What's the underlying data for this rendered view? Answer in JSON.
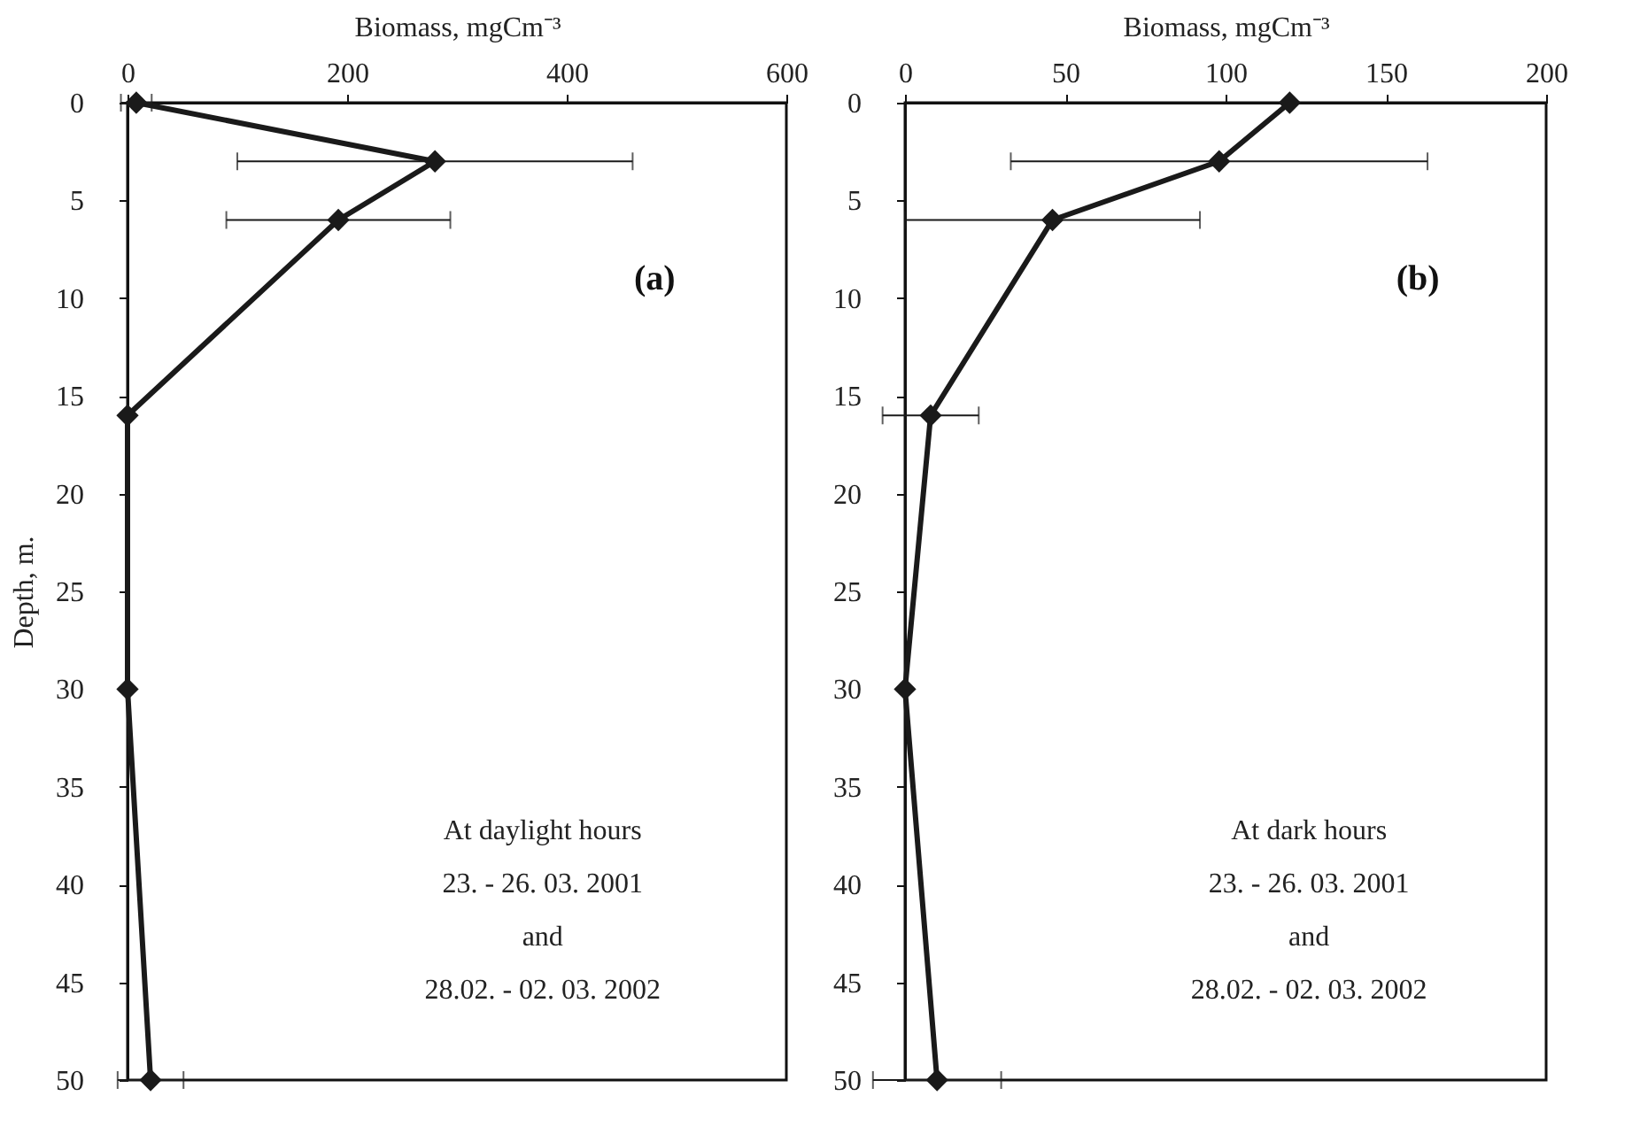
{
  "chart_data": [
    {
      "type": "line",
      "orientation": "horizontal",
      "xlabel": "Biomass, mgCm⁻³",
      "ylabel": "Depth, m.",
      "x": [
        0,
        3,
        6,
        16,
        30,
        50
      ],
      "series": [
        {
          "color": "#1a1a1a",
          "values": [
            8,
            280,
            192,
            0,
            0,
            21
          ],
          "errors": [
            14,
            180,
            102,
            null,
            null,
            30
          ]
        }
      ],
      "xlim": [
        0,
        600
      ],
      "xticks": [
        0,
        200,
        400,
        600
      ],
      "ylim": [
        50,
        0
      ],
      "yticks": [
        0,
        5,
        10,
        15,
        20,
        25,
        30,
        35,
        40,
        45,
        50
      ],
      "marker": "diamond",
      "line_style": "solid",
      "grid": false,
      "annotations": [
        "(a)",
        "At daylight hours\n23. - 26. 03. 2001\nand\n28.02. - 02. 03. 2002"
      ]
    },
    {
      "type": "line",
      "orientation": "horizontal",
      "xlabel": "Biomass, mgCm⁻³",
      "x": [
        0,
        3,
        6,
        16,
        30,
        50
      ],
      "series": [
        {
          "color": "#1a1a1a",
          "values": [
            120,
            98,
            46,
            8,
            0,
            10
          ],
          "errors": [
            null,
            65,
            46,
            15,
            null,
            20
          ]
        }
      ],
      "xlim": [
        0,
        200
      ],
      "xticks": [
        0,
        50,
        100,
        150,
        200
      ],
      "ylim": [
        50,
        0
      ],
      "yticks": [
        0,
        5,
        10,
        15,
        20,
        25,
        30,
        35,
        40,
        45,
        50
      ],
      "marker": "diamond",
      "line_style": "solid",
      "grid": false,
      "annotations": [
        "(b)",
        "At dark hours\n23. - 26. 03. 2001\nand\n28.02. - 02. 03. 2002"
      ]
    }
  ]
}
